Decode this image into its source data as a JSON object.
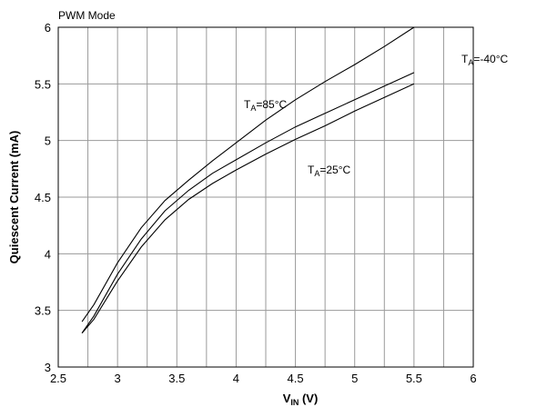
{
  "chart_data": {
    "type": "line",
    "title": "PWM Mode",
    "xlabel_main": "V",
    "xlabel_sub": "IN",
    "xlabel_unit": " (V)",
    "ylabel": "Quiescent Current (mA)",
    "xlim": [
      2.5,
      6
    ],
    "ylim": [
      3,
      6
    ],
    "x_ticks": [
      2.5,
      3,
      3.5,
      4,
      4.5,
      5,
      5.5,
      6
    ],
    "y_ticks": [
      3,
      3.5,
      4,
      4.5,
      5,
      5.5,
      6
    ],
    "grid": true,
    "series": [
      {
        "label_main": "T",
        "label_sub": "A",
        "label_rest": "=85°C",
        "x": [
          2.7,
          2.8,
          3.0,
          3.2,
          3.4,
          3.6,
          3.8,
          4.0,
          4.25,
          4.5,
          4.75,
          5.0,
          5.25,
          5.5
        ],
        "y": [
          3.4,
          3.55,
          3.92,
          4.23,
          4.47,
          4.65,
          4.82,
          4.98,
          5.18,
          5.36,
          5.52,
          5.67,
          5.83,
          6.0
        ]
      },
      {
        "label_main": "T",
        "label_sub": "A",
        "label_rest": "=-40°C",
        "x": [
          2.7,
          2.8,
          3.0,
          3.2,
          3.4,
          3.6,
          3.8,
          4.0,
          4.25,
          4.5,
          4.75,
          5.0,
          5.25,
          5.5
        ],
        "y": [
          3.3,
          3.45,
          3.82,
          4.13,
          4.38,
          4.56,
          4.71,
          4.83,
          4.98,
          5.12,
          5.24,
          5.36,
          5.48,
          5.6
        ]
      },
      {
        "label_main": "T",
        "label_sub": "A",
        "label_rest": "=25°C",
        "x": [
          2.7,
          2.8,
          3.0,
          3.2,
          3.4,
          3.6,
          3.8,
          4.0,
          4.25,
          4.5,
          4.75,
          5.0,
          5.25,
          5.5
        ],
        "y": [
          3.3,
          3.42,
          3.76,
          4.06,
          4.3,
          4.48,
          4.62,
          4.74,
          4.88,
          5.01,
          5.13,
          5.26,
          5.38,
          5.5
        ]
      }
    ]
  }
}
